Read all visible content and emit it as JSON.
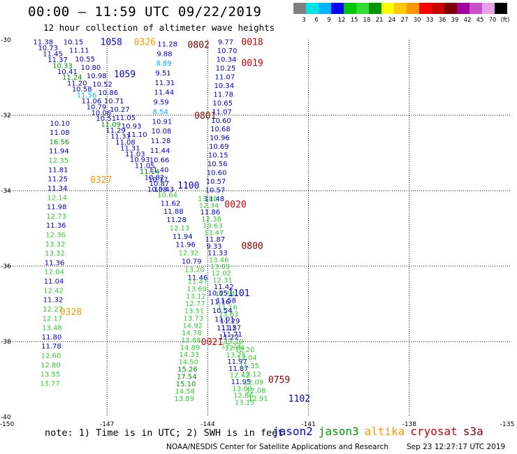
{
  "title": "00:00 – 11:59 UTC 09/22/2019",
  "subtitle": "12 hour collection of altimeter wave heights",
  "legend": {
    "colors": [
      "#808080",
      "#00e6e6",
      "#00b4ff",
      "#0000ff",
      "#00c800",
      "#32dc32",
      "#009600",
      "#ffff00",
      "#ffc800",
      "#ff9600",
      "#ff0000",
      "#c80000",
      "#800000",
      "#a000a0",
      "#c850c8",
      "#e6a0e6",
      "#000000"
    ],
    "labels": [
      "3",
      "6",
      "9",
      "12",
      "15",
      "18",
      "21",
      "24",
      "27",
      "30",
      "33",
      "36",
      "39",
      "42",
      "45",
      "70",
      "(ft)"
    ]
  },
  "axes": {
    "x_ticks": [
      "-150",
      "-147",
      "-144",
      "-141",
      "-138",
      "-135"
    ],
    "y_ticks": [
      "-30",
      "-32",
      "-34",
      "-36",
      "-38",
      "-40"
    ]
  },
  "note": "note: 1) Time is in UTC; 2) SWH is in feet",
  "satellites": [
    {
      "name": "jason2",
      "color": "#0000cc"
    },
    {
      "name": "jason3",
      "color": "#009900"
    },
    {
      "name": "altika",
      "color": "#ff9900"
    },
    {
      "name": "cryosat",
      "color": "#cc0000"
    },
    {
      "name": "s3a",
      "color": "#800000"
    }
  ],
  "credit": "NOAA/NESDIS Center for Satellite Applications and Research",
  "timestamp": "Sep 23 12:27:17 UTC 2019",
  "time_labels": [
    {
      "text": "0326",
      "lon": -146.2,
      "lat": -30.05,
      "color": "#ff9900"
    },
    {
      "text": "1058",
      "lon": -147.2,
      "lat": -30.05,
      "color": "#0000cc"
    },
    {
      "text": "1059",
      "lon": -146.8,
      "lat": -30.9,
      "color": "#0000cc"
    },
    {
      "text": "0802",
      "lon": -144.6,
      "lat": -30.12,
      "color": "#800000"
    },
    {
      "text": "0018",
      "lon": -143.0,
      "lat": -30.05,
      "color": "#cc0000"
    },
    {
      "text": "0019",
      "lon": -143.0,
      "lat": -30.6,
      "color": "#cc0000"
    },
    {
      "text": "0801",
      "lon": -144.4,
      "lat": -32.0,
      "color": "#800000"
    },
    {
      "text": "0327",
      "lon": -147.5,
      "lat": -33.7,
      "color": "#ff9900"
    },
    {
      "text": "1100",
      "lon": -144.9,
      "lat": -33.85,
      "color": "#0000cc"
    },
    {
      "text": "0020",
      "lon": -143.5,
      "lat": -34.35,
      "color": "#cc0000"
    },
    {
      "text": "0800",
      "lon": -143.0,
      "lat": -35.45,
      "color": "#800000"
    },
    {
      "text": "1101",
      "lon": -143.4,
      "lat": -36.7,
      "color": "#0000cc"
    },
    {
      "text": "0328",
      "lon": -148.4,
      "lat": -37.2,
      "color": "#ff9900"
    },
    {
      "text": "0021",
      "lon": -144.2,
      "lat": -38.0,
      "color": "#cc0000"
    },
    {
      "text": "0759",
      "lon": -142.2,
      "lat": -39.0,
      "color": "#800000"
    },
    {
      "text": "1102",
      "lon": -141.6,
      "lat": -39.5,
      "color": "#0000cc"
    }
  ],
  "tracks": [
    {
      "color_default": "#0000cc",
      "start": [
        -149.2,
        -30.05
      ],
      "end": [
        -145.6,
        -33.95
      ],
      "values": [
        "11.38",
        "10.73",
        "11.45",
        "11.37",
        "10.33",
        "10.41",
        "11.24",
        "11.20",
        "10.58",
        "11.56",
        "11.06",
        "10.79",
        "10.06",
        "10.51",
        "11.09",
        "11.29",
        "11.31",
        "11.08",
        "11.31",
        "11.03",
        "10.93",
        "11.05",
        "11.14",
        "10.82",
        "10.87",
        "10.43"
      ],
      "colors": {
        "4": "#009900",
        "6": "#009900",
        "9": "#00b4ff",
        "14": "#009900",
        "22": "#009900"
      }
    },
    {
      "color_default": "#0000cc",
      "start": [
        -148.3,
        -30.05
      ],
      "end": [
        -146.4,
        -32.5
      ],
      "values": [
        "10.15",
        "11.11",
        "10.55",
        "10.80",
        "10.98",
        "10.52",
        "10.86",
        "10.71",
        "10.27",
        "11.05",
        "10.93",
        "11.10"
      ],
      "colors": {}
    },
    {
      "color_default": "#0000cc",
      "start": [
        -148.7,
        -32.2
      ],
      "end": [
        -149.0,
        -39.1
      ],
      "values": [
        "10.10",
        "11.08",
        "16.56",
        "11.94",
        "12.35",
        "11.81",
        "11.25",
        "11.34",
        "12.14",
        "11.98",
        "12.73",
        "11.36",
        "12.36",
        "13.32",
        "13.32",
        "11.36",
        "12.04",
        "11.04",
        "12.42",
        "11.32",
        "12.27",
        "12.17",
        "13.48",
        "11.80",
        "11.78",
        "12.60",
        "12.80",
        "13.55",
        "13.77"
      ],
      "colors": {
        "2": "#009900",
        "4": "#33cc33",
        "8": "#33cc33",
        "10": "#33cc33",
        "12": "#33cc33",
        "13": "#33cc33",
        "14": "#33cc33",
        "16": "#33cc33",
        "18": "#33cc33",
        "20": "#33cc33",
        "21": "#33cc33",
        "22": "#33cc33",
        "25": "#33cc33",
        "26": "#33cc33",
        "27": "#33cc33",
        "28": "#33cc33"
      }
    },
    {
      "color_default": "#0000cc",
      "start": [
        -145.5,
        -30.1
      ],
      "end": [
        -145.8,
        -33.95
      ],
      "values": [
        "11.28",
        "9.88",
        "8.89",
        "9.51",
        "11.31",
        "11.44",
        "9.59",
        "8.54",
        "10.91",
        "10.08",
        "11.28",
        "11.44",
        "10.66",
        "11.40",
        "10.77",
        "10.58"
      ],
      "colors": {
        "2": "#00b4ff",
        "7": "#00b4ff"
      }
    },
    {
      "color_default": "#0000cc",
      "start": [
        -143.7,
        -30.05
      ],
      "end": [
        -144.1,
        -34.2
      ],
      "values": [
        "9.77",
        "10.70",
        "10.34",
        "10.25",
        "11.07",
        "10.34",
        "11.78",
        "10.65",
        "11.07",
        "10.60",
        "10.68",
        "10.96",
        "10.69",
        "10.15",
        "10.56",
        "10.60",
        "10.57",
        "10.57",
        "11.48"
      ],
      "colors": {}
    },
    {
      "color_default": "#0000cc",
      "start": [
        -145.5,
        -34.1
      ],
      "end": [
        -144.6,
        -36.3
      ],
      "values": [
        "10.64",
        "11.62",
        "11.88",
        "11.28",
        "12.13",
        "11.94",
        "11.96",
        "12.32",
        "10.79",
        "13.20",
        "11.46"
      ],
      "colors": {
        "0": "#33cc33",
        "4": "#33cc33",
        "7": "#33cc33",
        "9": "#33cc33"
      }
    },
    {
      "color_default": "#33cc33",
      "start": [
        -144.3,
        -34.2
      ],
      "end": [
        -143.2,
        -39.6
      ],
      "values": [
        "13.08",
        "12.34",
        "11.86",
        "12.38",
        "13.63",
        "13.47",
        "11.87",
        "9.33",
        "11.33",
        "13.46",
        "13.09",
        "12.02",
        "12.31",
        "11.42",
        "12.54",
        "11.58",
        "11.16",
        "13.63",
        "11.29",
        "11.27",
        "11.71",
        "13.10",
        "12.84",
        "13.25",
        "11.97",
        "11.87",
        "12.42",
        "11.95",
        "13.09",
        "12.86",
        "13.15"
      ],
      "colors": {
        "2": "#0000cc",
        "6": "#0000cc",
        "7": "#0000cc",
        "8": "#0000cc",
        "13": "#0000cc",
        "15": "#0000cc",
        "18": "#0000cc",
        "19": "#0000cc",
        "20": "#0000cc",
        "24": "#0000cc",
        "25": "#0000cc",
        "27": "#0000cc"
      }
    },
    {
      "color_default": "#33cc33",
      "start": [
        -144.6,
        -36.4
      ],
      "end": [
        -145.0,
        -39.5
      ],
      "values": [
        "11.47",
        "13.69",
        "13.12",
        "12.77",
        "13.51",
        "13.73",
        "14.92",
        "14.78",
        "13.88",
        "14.89",
        "14.33",
        "14.50",
        "15.26",
        "17.54",
        "15.10",
        "14.58",
        "13.89"
      ],
      "colors": {
        "12": "#009900",
        "13": "#009900",
        "14": "#009900"
      }
    },
    {
      "color_default": "#0000cc",
      "start": [
        -144.0,
        -36.7
      ],
      "end": [
        -143.6,
        -38.1
      ],
      "values": [
        "10.85",
        "11.16",
        "10.54",
        "11.01",
        "11.15",
        "11.22",
        "12.23"
      ],
      "colors": {
        "6": "#33cc33"
      }
    },
    {
      "color_default": "#33cc33",
      "start": [
        -143.2,
        -38.2
      ],
      "end": [
        -142.8,
        -39.5
      ],
      "values": [
        "12.20",
        "12.04",
        "11.35",
        "13.12",
        "12.09",
        "12.08",
        "12.91"
      ],
      "colors": {}
    }
  ]
}
